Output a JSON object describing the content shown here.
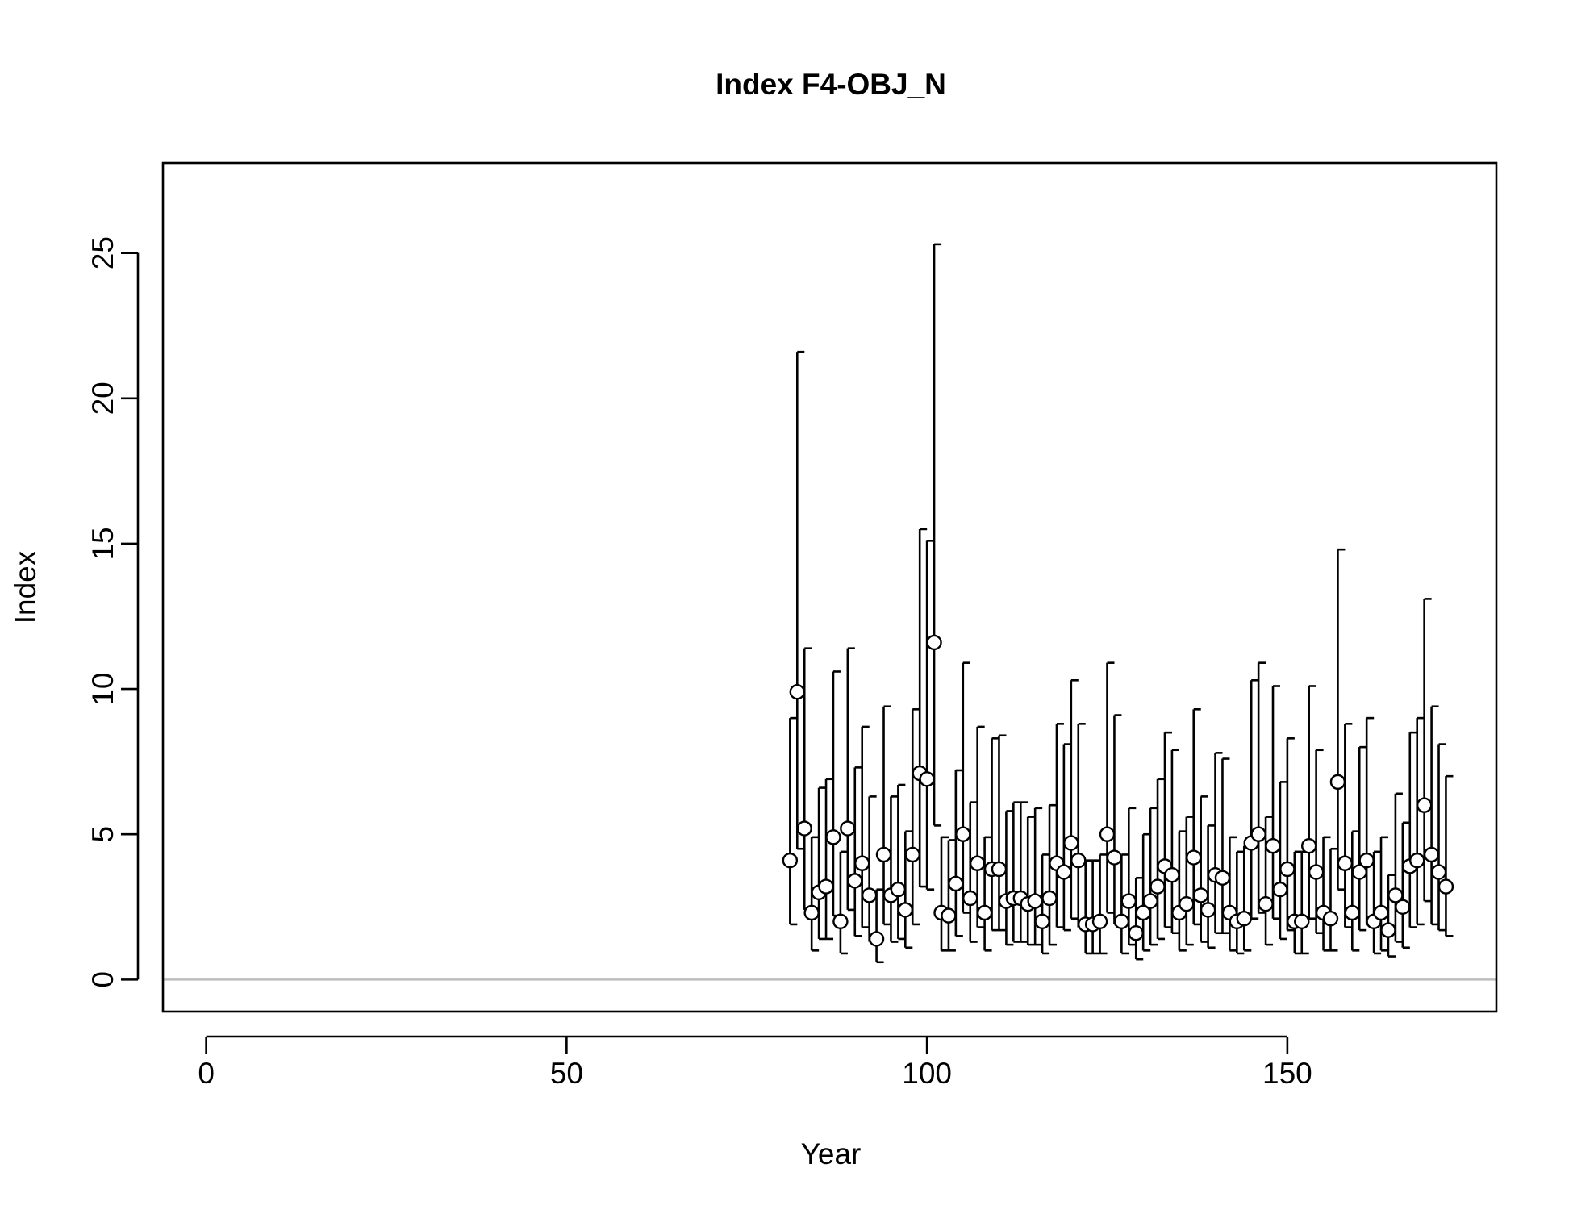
{
  "chart_data": {
    "type": "scatter",
    "title": "Index F4-OBJ_N",
    "xlabel": "Year",
    "ylabel": "Index",
    "xlim": [
      -6,
      179
    ],
    "ylim": [
      -1.1,
      28.1
    ],
    "xticks": [
      0,
      50,
      100,
      150
    ],
    "yticks": [
      0,
      5,
      10,
      15,
      20,
      25
    ],
    "reference_line": {
      "y": 0,
      "color": "#bebebe"
    },
    "colors": {
      "point_fill": "#ffffff",
      "point_stroke": "#000000",
      "errorbar": "#000000"
    },
    "series": [
      {
        "x": [
          81,
          82,
          83,
          84,
          85,
          86,
          87,
          88,
          89,
          90,
          91,
          92,
          93,
          94,
          95,
          96,
          97,
          98,
          99,
          100,
          101,
          102,
          103,
          104,
          105,
          106,
          107,
          108,
          109,
          110,
          111,
          112,
          113,
          114,
          115,
          116,
          117,
          118,
          119,
          120,
          121,
          122,
          123,
          124,
          125,
          126,
          127,
          128,
          129,
          130,
          131,
          132,
          133,
          134,
          135,
          136,
          137,
          138,
          139,
          140,
          141,
          142,
          143,
          144,
          145,
          146,
          147,
          148,
          149,
          150,
          151,
          152,
          153,
          154,
          155,
          156,
          157,
          158,
          159,
          160,
          161,
          162,
          163,
          164,
          165,
          166,
          167,
          168,
          169,
          170,
          171,
          172
        ],
        "y": [
          4.1,
          9.9,
          5.2,
          2.3,
          3.0,
          3.2,
          4.9,
          2.0,
          5.2,
          3.4,
          4.0,
          2.9,
          1.4,
          4.3,
          2.9,
          3.1,
          2.4,
          4.3,
          7.1,
          6.9,
          11.6,
          2.3,
          2.2,
          3.3,
          5.0,
          2.8,
          4.0,
          2.3,
          3.8,
          3.8,
          2.7,
          2.8,
          2.8,
          2.6,
          2.7,
          2.0,
          2.8,
          4.0,
          3.7,
          4.7,
          4.1,
          1.9,
          1.9,
          2.0,
          5.0,
          4.2,
          2.0,
          2.7,
          1.6,
          2.3,
          2.7,
          3.2,
          3.9,
          3.6,
          2.3,
          2.6,
          4.2,
          2.9,
          2.4,
          3.6,
          3.5,
          2.3,
          2.0,
          2.1,
          4.7,
          5.0,
          2.6,
          4.6,
          3.1,
          3.8,
          2.0,
          2.0,
          4.6,
          3.7,
          2.3,
          2.1,
          6.8,
          4.0,
          2.3,
          3.7,
          4.1,
          2.0,
          2.3,
          1.7,
          2.9,
          2.5,
          3.9,
          4.1,
          6.0,
          4.3,
          3.7,
          3.2
        ],
        "lower": [
          1.9,
          4.5,
          2.4,
          1.0,
          1.4,
          1.4,
          2.2,
          0.9,
          2.4,
          1.5,
          1.8,
          1.3,
          0.6,
          1.9,
          1.3,
          1.4,
          1.1,
          1.9,
          3.2,
          3.1,
          5.3,
          1.0,
          1.0,
          1.5,
          2.3,
          1.3,
          1.8,
          1.0,
          1.7,
          1.7,
          1.2,
          1.3,
          1.3,
          1.2,
          1.2,
          0.9,
          1.2,
          1.8,
          1.7,
          2.1,
          1.8,
          0.9,
          0.9,
          0.9,
          2.3,
          1.9,
          0.9,
          1.2,
          0.7,
          1.0,
          1.2,
          1.4,
          1.8,
          1.6,
          1.0,
          1.2,
          1.9,
          1.3,
          1.1,
          1.6,
          1.6,
          1.0,
          0.9,
          1.0,
          2.1,
          2.3,
          1.2,
          2.1,
          1.4,
          1.7,
          0.9,
          0.9,
          2.1,
          1.6,
          1.0,
          1.0,
          3.1,
          1.8,
          1.0,
          1.7,
          1.9,
          0.9,
          1.0,
          0.8,
          1.3,
          1.1,
          1.8,
          1.9,
          2.7,
          1.9,
          1.7,
          1.5
        ],
        "upper": [
          9.0,
          21.6,
          11.4,
          4.9,
          6.6,
          6.9,
          10.6,
          4.4,
          11.4,
          7.3,
          8.7,
          6.3,
          3.1,
          9.4,
          6.3,
          6.7,
          5.1,
          9.3,
          15.5,
          15.1,
          25.3,
          4.9,
          4.8,
          7.2,
          10.9,
          6.1,
          8.7,
          4.9,
          8.3,
          8.4,
          5.8,
          6.1,
          6.1,
          5.6,
          5.9,
          4.3,
          6.0,
          8.8,
          8.1,
          10.3,
          8.8,
          4.1,
          4.1,
          4.3,
          10.9,
          9.1,
          4.3,
          5.9,
          3.5,
          5.0,
          5.9,
          6.9,
          8.5,
          7.9,
          5.1,
          5.6,
          9.3,
          6.3,
          5.3,
          7.8,
          7.6,
          4.9,
          4.4,
          4.6,
          10.3,
          10.9,
          5.6,
          10.1,
          6.8,
          8.3,
          4.4,
          4.4,
          10.1,
          7.9,
          4.9,
          4.5,
          14.8,
          8.8,
          5.1,
          8.0,
          9.0,
          4.4,
          4.9,
          3.6,
          6.4,
          5.4,
          8.5,
          9.0,
          13.1,
          9.4,
          8.1,
          7.0
        ]
      }
    ]
  }
}
